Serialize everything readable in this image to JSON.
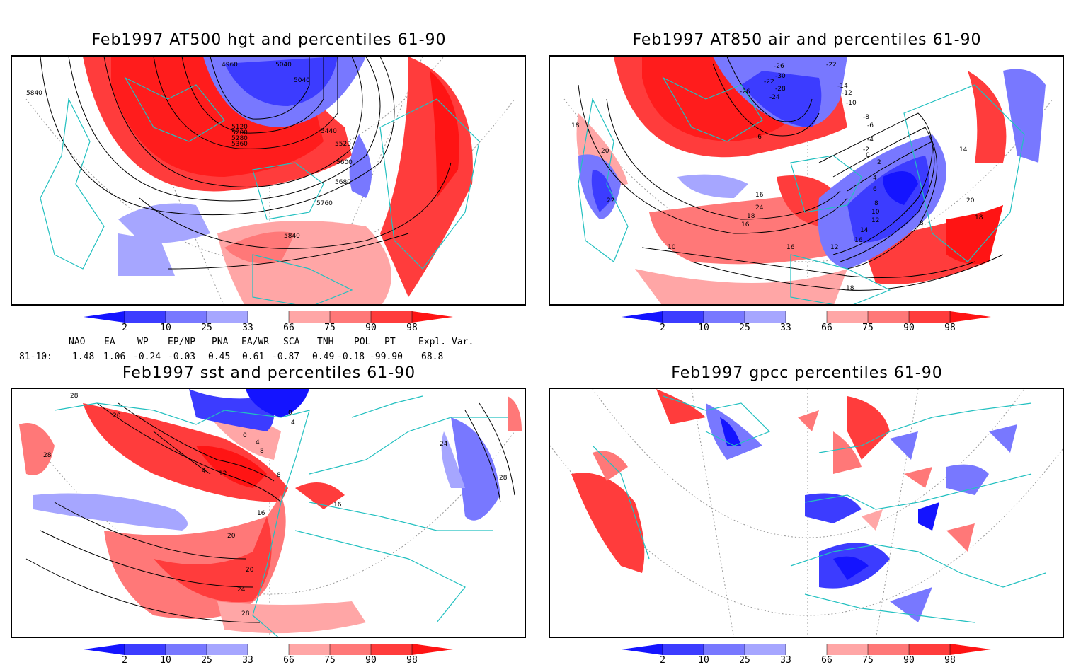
{
  "panels": [
    {
      "title": "Feb1997 AT500 hgt and percentiles 61-90",
      "contour_labels": [
        "5840",
        "4960",
        "5040",
        "5040",
        "5120",
        "5200",
        "5280",
        "5360",
        "5440",
        "5520",
        "5600",
        "5680",
        "5760",
        "5840"
      ]
    },
    {
      "title": "Feb1997 AT850 air and percentiles 61-90",
      "contour_labels": [
        "-26",
        "-30",
        "-22",
        "-28",
        "-24",
        "-26",
        "-22",
        "-14",
        "-12",
        "-10",
        "-8",
        "-6",
        "-6",
        "-4",
        "-2",
        "0",
        "2",
        "4",
        "6",
        "8",
        "10",
        "12",
        "14",
        "16",
        "18",
        "20",
        "22",
        "24",
        "16",
        "18",
        "16",
        "10",
        "8",
        "12",
        "14",
        "16",
        "20",
        "18",
        "18",
        "20",
        "22",
        "24",
        "18"
      ]
    },
    {
      "title": "Feb1997 sst and percentiles 61-90",
      "contour_labels": [
        "28",
        "20",
        "28",
        "0",
        "4",
        "0",
        "4",
        "8",
        "4",
        "12",
        "8",
        "16",
        "16",
        "20",
        "20",
        "24",
        "28",
        "24",
        "28"
      ]
    },
    {
      "title": "Feb1997 gpcc percentiles 61-90",
      "contour_labels": []
    }
  ],
  "colorbar": {
    "ticks": [
      "2",
      "10",
      "25",
      "33",
      "66",
      "75",
      "90",
      "98"
    ],
    "colors": [
      "#1414ff",
      "#3c3cff",
      "#7878ff",
      "#a6a6ff",
      "#ffffff",
      "#ffa6a6",
      "#ff7878",
      "#ff3c3c",
      "#ff1414"
    ]
  },
  "indices": {
    "header": [
      "NAO",
      "EA",
      "WP",
      "EP/NP",
      "PNA",
      "EA/WR",
      "SCA",
      "TNH",
      "POL",
      "PT",
      "Expl. Var."
    ],
    "row_label": "81-10:",
    "values": [
      "1.48",
      "1.06",
      "-0.24",
      "-0.03",
      "0.45",
      "0.61",
      "-0.87",
      "0.49",
      "-0.18",
      "-99.90",
      "68.8"
    ]
  }
}
